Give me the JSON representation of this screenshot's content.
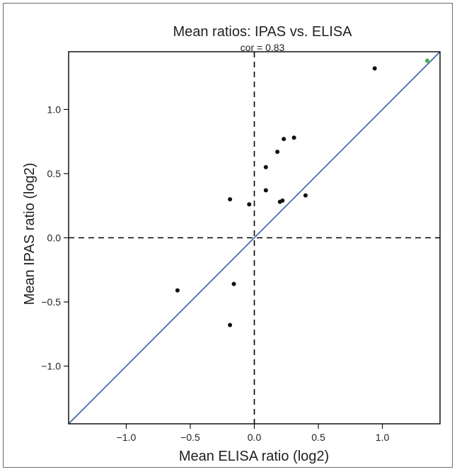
{
  "chart_data": {
    "type": "scatter",
    "title": "Mean ratios: IPAS vs. ELISA",
    "subtitle": "cor = 0.83",
    "xlabel": "Mean ELISA ratio (log2)",
    "ylabel": "Mean IPAS ratio (log2)",
    "xlim": [
      -1.45,
      1.45
    ],
    "ylim": [
      -1.45,
      1.45
    ],
    "x_ticks": [
      -1.0,
      -0.5,
      0.0,
      0.5,
      1.0
    ],
    "x_tick_labels": [
      "−1.0",
      "−0.5",
      "0.0",
      "0.5",
      "1.0"
    ],
    "y_ticks": [
      -1.0,
      -0.5,
      0.0,
      0.5,
      1.0
    ],
    "y_tick_labels": [
      "−1.0",
      "−0.5",
      "0.0",
      "0.5",
      "1.0"
    ],
    "grid": false,
    "reference_lines": {
      "identity": {
        "type": "y=x",
        "color": "#3a5ea8"
      },
      "zero_x": {
        "type": "dashed",
        "x": 0.0,
        "color": "#000000"
      },
      "zero_y": {
        "type": "dashed",
        "y": 0.0,
        "color": "#000000"
      }
    },
    "points": [
      {
        "x": -0.6,
        "y": -0.41,
        "color": "#111111"
      },
      {
        "x": -0.19,
        "y": -0.68,
        "color": "#111111"
      },
      {
        "x": -0.16,
        "y": -0.36,
        "color": "#111111"
      },
      {
        "x": -0.19,
        "y": 0.3,
        "color": "#111111"
      },
      {
        "x": -0.04,
        "y": 0.26,
        "color": "#111111"
      },
      {
        "x": 0.09,
        "y": 0.37,
        "color": "#111111"
      },
      {
        "x": 0.09,
        "y": 0.55,
        "color": "#111111"
      },
      {
        "x": 0.2,
        "y": 0.28,
        "color": "#111111"
      },
      {
        "x": 0.22,
        "y": 0.29,
        "color": "#111111"
      },
      {
        "x": 0.4,
        "y": 0.33,
        "color": "#111111"
      },
      {
        "x": 0.18,
        "y": 0.67,
        "color": "#111111"
      },
      {
        "x": 0.23,
        "y": 0.77,
        "color": "#111111"
      },
      {
        "x": 0.31,
        "y": 0.78,
        "color": "#111111"
      },
      {
        "x": 0.94,
        "y": 1.32,
        "color": "#111111"
      },
      {
        "x": 1.35,
        "y": 1.38,
        "color": "#3cb54a"
      }
    ]
  }
}
